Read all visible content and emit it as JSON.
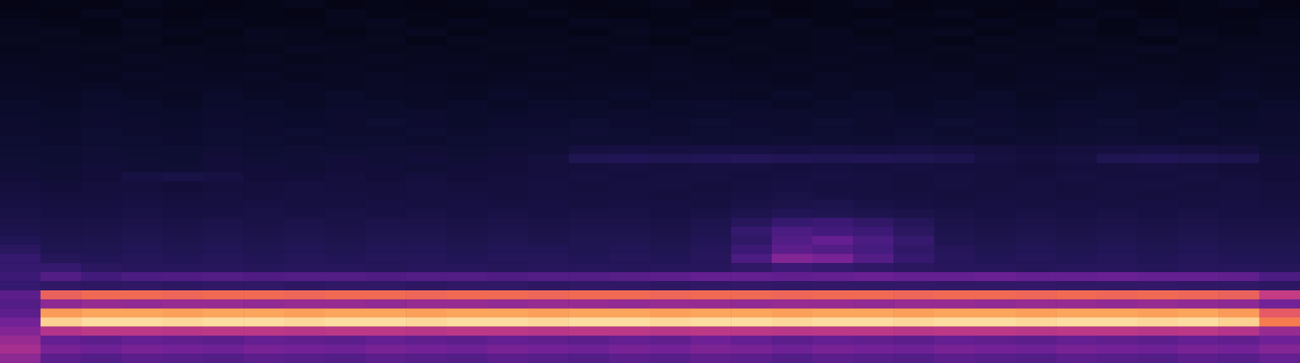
{
  "chart_data": {
    "type": "heatmap",
    "tick_labels": false,
    "grid": false,
    "zlim": [
      0,
      100
    ],
    "cells": [
      [
        5,
        6,
        5,
        7,
        6,
        5,
        6,
        7,
        5,
        6,
        5,
        6,
        7,
        6,
        5,
        6,
        7,
        5,
        6,
        5,
        6,
        7,
        5,
        6,
        6,
        5,
        7,
        6,
        5,
        6,
        7,
        5
      ],
      [
        6,
        5,
        7,
        6,
        5,
        6,
        6,
        5,
        7,
        6,
        6,
        5,
        6,
        7,
        6,
        5,
        6,
        6,
        7,
        5,
        6,
        5,
        6,
        7,
        5,
        6,
        6,
        7,
        5,
        6,
        5,
        6
      ],
      [
        7,
        6,
        6,
        8,
        6,
        7,
        6,
        6,
        7,
        8,
        6,
        7,
        6,
        6,
        8,
        7,
        6,
        7,
        6,
        8,
        6,
        7,
        6,
        6,
        7,
        6,
        8,
        6,
        7,
        6,
        6,
        7
      ],
      [
        7,
        8,
        6,
        7,
        7,
        6,
        8,
        7,
        6,
        7,
        8,
        6,
        7,
        7,
        6,
        8,
        7,
        6,
        7,
        7,
        8,
        6,
        7,
        8,
        6,
        7,
        7,
        6,
        8,
        7,
        6,
        7
      ],
      [
        8,
        7,
        7,
        8,
        6,
        7,
        8,
        7,
        7,
        8,
        6,
        8,
        7,
        7,
        8,
        7,
        6,
        8,
        7,
        7,
        8,
        7,
        7,
        6,
        8,
        7,
        8,
        7,
        6,
        8,
        7,
        7
      ],
      [
        7,
        8,
        8,
        7,
        8,
        7,
        7,
        9,
        8,
        7,
        8,
        7,
        8,
        8,
        7,
        9,
        8,
        7,
        8,
        7,
        8,
        9,
        7,
        8,
        7,
        8,
        7,
        8,
        9,
        7,
        8,
        8
      ],
      [
        8,
        8,
        7,
        9,
        8,
        8,
        9,
        7,
        8,
        9,
        8,
        8,
        7,
        9,
        8,
        8,
        9,
        8,
        7,
        8,
        9,
        8,
        8,
        7,
        9,
        8,
        8,
        9,
        7,
        8,
        8,
        9
      ],
      [
        9,
        8,
        9,
        8,
        9,
        8,
        8,
        9,
        9,
        8,
        9,
        9,
        8,
        8,
        9,
        8,
        9,
        9,
        8,
        9,
        8,
        9,
        9,
        8,
        8,
        9,
        9,
        8,
        9,
        8,
        9,
        8
      ],
      [
        9,
        9,
        8,
        10,
        9,
        9,
        10,
        8,
        9,
        10,
        9,
        8,
        9,
        10,
        9,
        9,
        10,
        9,
        9,
        8,
        10,
        9,
        9,
        10,
        8,
        9,
        10,
        9,
        9,
        8,
        10,
        9
      ],
      [
        10,
        9,
        10,
        9,
        10,
        10,
        9,
        10,
        9,
        10,
        10,
        9,
        10,
        9,
        10,
        10,
        9,
        10,
        10,
        9,
        10,
        9,
        10,
        10,
        9,
        10,
        9,
        10,
        10,
        9,
        10,
        9
      ],
      [
        10,
        10,
        11,
        10,
        9,
        11,
        10,
        10,
        11,
        10,
        10,
        9,
        11,
        10,
        10,
        11,
        10,
        10,
        9,
        11,
        10,
        11,
        10,
        10,
        11,
        9,
        10,
        11,
        10,
        10,
        11,
        10
      ],
      [
        11,
        10,
        11,
        11,
        10,
        11,
        11,
        10,
        11,
        11,
        10,
        11,
        10,
        11,
        11,
        10,
        11,
        12,
        11,
        10,
        11,
        11,
        10,
        11,
        11,
        10,
        11,
        11,
        10,
        11,
        10,
        11
      ],
      [
        11,
        11,
        12,
        11,
        11,
        12,
        11,
        11,
        12,
        11,
        12,
        11,
        11,
        12,
        11,
        12,
        11,
        11,
        12,
        12,
        11,
        12,
        11,
        11,
        12,
        11,
        12,
        11,
        12,
        11,
        11,
        12
      ],
      [
        12,
        11,
        12,
        12,
        11,
        12,
        12,
        11,
        12,
        13,
        12,
        11,
        12,
        12,
        13,
        12,
        12,
        13,
        12,
        12,
        13,
        12,
        12,
        13,
        12,
        11,
        12,
        13,
        12,
        12,
        11,
        12
      ],
      [
        12,
        12,
        13,
        12,
        12,
        13,
        12,
        13,
        12,
        12,
        13,
        12,
        13,
        13,
        14,
        13,
        12,
        13,
        13,
        12,
        13,
        12,
        13,
        12,
        13,
        12,
        13,
        13,
        12,
        13,
        12,
        12
      ],
      [
        13,
        12,
        13,
        13,
        12,
        13,
        13,
        12,
        13,
        13,
        12,
        13,
        13,
        14,
        13,
        13,
        14,
        13,
        13,
        14,
        13,
        13,
        14,
        13,
        12,
        13,
        13,
        14,
        13,
        12,
        13,
        13
      ],
      [
        13,
        13,
        14,
        13,
        13,
        14,
        13,
        14,
        13,
        14,
        14,
        13,
        14,
        14,
        17,
        18,
        17,
        18,
        18,
        17,
        18,
        17,
        18,
        17,
        16,
        15,
        16,
        17,
        18,
        17,
        16,
        13
      ],
      [
        14,
        13,
        14,
        14,
        13,
        15,
        14,
        14,
        15,
        14,
        15,
        14,
        15,
        16,
        22,
        23,
        22,
        23,
        24,
        23,
        22,
        23,
        22,
        21,
        17,
        16,
        17,
        22,
        23,
        22,
        21,
        15
      ],
      [
        14,
        14,
        15,
        14,
        14,
        15,
        15,
        14,
        15,
        15,
        14,
        15,
        15,
        16,
        16,
        17,
        16,
        17,
        17,
        16,
        17,
        16,
        17,
        16,
        16,
        15,
        16,
        16,
        17,
        16,
        15,
        15
      ],
      [
        15,
        14,
        15,
        18,
        19,
        18,
        15,
        15,
        16,
        15,
        16,
        15,
        16,
        16,
        17,
        16,
        17,
        17,
        16,
        17,
        18,
        17,
        16,
        17,
        16,
        16,
        17,
        16,
        16,
        17,
        16,
        15
      ],
      [
        16,
        15,
        16,
        16,
        15,
        16,
        16,
        17,
        16,
        16,
        17,
        16,
        16,
        17,
        16,
        17,
        17,
        16,
        17,
        18,
        17,
        17,
        16,
        17,
        16,
        17,
        16,
        17,
        17,
        16,
        17,
        16
      ],
      [
        17,
        16,
        16,
        17,
        16,
        17,
        16,
        17,
        17,
        16,
        17,
        17,
        16,
        17,
        17,
        17,
        16,
        17,
        18,
        19,
        18,
        17,
        17,
        16,
        17,
        17,
        16,
        17,
        16,
        17,
        17,
        16
      ],
      [
        18,
        17,
        17,
        18,
        17,
        17,
        18,
        17,
        17,
        18,
        17,
        18,
        17,
        18,
        17,
        18,
        18,
        17,
        19,
        20,
        21,
        19,
        18,
        17,
        18,
        17,
        18,
        17,
        18,
        17,
        18,
        17
      ],
      [
        19,
        18,
        18,
        19,
        18,
        18,
        19,
        18,
        19,
        18,
        19,
        18,
        19,
        18,
        19,
        19,
        18,
        19,
        21,
        23,
        22,
        21,
        20,
        19,
        18,
        19,
        18,
        19,
        18,
        19,
        18,
        18
      ],
      [
        20,
        19,
        19,
        20,
        19,
        20,
        19,
        20,
        19,
        20,
        20,
        19,
        20,
        19,
        20,
        20,
        19,
        21,
        25,
        30,
        32,
        28,
        24,
        20,
        19,
        20,
        19,
        20,
        19,
        20,
        19,
        19
      ],
      [
        21,
        20,
        20,
        21,
        20,
        21,
        20,
        21,
        20,
        21,
        21,
        20,
        21,
        20,
        21,
        21,
        20,
        22,
        30,
        36,
        34,
        32,
        26,
        21,
        20,
        21,
        20,
        21,
        20,
        21,
        20,
        20
      ],
      [
        23,
        21,
        21,
        22,
        21,
        22,
        21,
        22,
        21,
        22,
        22,
        21,
        22,
        21,
        22,
        22,
        21,
        23,
        28,
        38,
        42,
        36,
        30,
        22,
        21,
        22,
        21,
        22,
        21,
        22,
        21,
        21
      ],
      [
        26,
        22,
        22,
        23,
        22,
        23,
        22,
        23,
        22,
        23,
        23,
        22,
        23,
        23,
        22,
        23,
        22,
        24,
        32,
        40,
        38,
        35,
        28,
        24,
        22,
        23,
        22,
        23,
        22,
        23,
        22,
        22
      ],
      [
        30,
        24,
        23,
        24,
        23,
        24,
        23,
        24,
        23,
        24,
        24,
        23,
        24,
        24,
        23,
        24,
        23,
        25,
        36,
        48,
        46,
        38,
        30,
        25,
        23,
        24,
        23,
        24,
        23,
        24,
        23,
        23
      ],
      [
        30,
        30,
        26,
        25,
        25,
        25,
        24,
        25,
        25,
        24,
        25,
        25,
        24,
        25,
        25,
        24,
        25,
        25,
        28,
        32,
        30,
        28,
        26,
        25,
        25,
        24,
        25,
        25,
        24,
        25,
        25,
        24
      ],
      [
        32,
        38,
        34,
        36,
        37,
        38,
        37,
        38,
        38,
        37,
        38,
        38,
        37,
        38,
        38,
        39,
        40,
        42,
        42,
        41,
        42,
        43,
        42,
        42,
        43,
        42,
        42,
        43,
        42,
        42,
        41,
        36
      ],
      [
        30,
        28,
        27,
        28,
        27,
        28,
        28,
        27,
        28,
        28,
        27,
        28,
        28,
        27,
        28,
        28,
        27,
        28,
        29,
        28,
        29,
        28,
        29,
        28,
        28,
        29,
        28,
        28,
        29,
        28,
        28,
        27
      ],
      [
        40,
        74,
        76,
        76,
        75,
        76,
        76,
        75,
        76,
        76,
        75,
        76,
        76,
        75,
        76,
        76,
        75,
        76,
        76,
        75,
        76,
        76,
        75,
        76,
        76,
        75,
        76,
        75,
        76,
        75,
        74,
        62
      ],
      [
        38,
        50,
        52,
        51,
        52,
        52,
        51,
        52,
        52,
        51,
        52,
        52,
        51,
        52,
        52,
        51,
        52,
        52,
        51,
        52,
        52,
        51,
        52,
        52,
        51,
        52,
        52,
        51,
        52,
        51,
        50,
        45
      ],
      [
        40,
        86,
        88,
        88,
        87,
        88,
        88,
        87,
        88,
        88,
        87,
        88,
        88,
        87,
        88,
        88,
        87,
        88,
        88,
        87,
        88,
        88,
        87,
        88,
        88,
        87,
        88,
        88,
        87,
        88,
        86,
        72
      ],
      [
        45,
        96,
        98,
        98,
        97,
        98,
        98,
        97,
        98,
        98,
        97,
        98,
        98,
        97,
        98,
        98,
        97,
        98,
        98,
        97,
        98,
        98,
        97,
        98,
        98,
        97,
        98,
        98,
        97,
        98,
        96,
        80
      ],
      [
        48,
        58,
        60,
        60,
        59,
        60,
        60,
        59,
        60,
        60,
        59,
        60,
        60,
        59,
        60,
        60,
        59,
        60,
        60,
        59,
        60,
        60,
        59,
        60,
        60,
        59,
        60,
        60,
        59,
        60,
        58,
        52
      ],
      [
        52,
        42,
        40,
        42,
        41,
        40,
        42,
        41,
        40,
        42,
        41,
        40,
        42,
        41,
        40,
        42,
        41,
        44,
        42,
        40,
        42,
        41,
        40,
        42,
        41,
        40,
        42,
        41,
        40,
        42,
        41,
        44
      ],
      [
        55,
        46,
        44,
        46,
        45,
        44,
        46,
        45,
        44,
        46,
        45,
        44,
        46,
        45,
        44,
        46,
        45,
        47,
        46,
        44,
        46,
        45,
        44,
        46,
        45,
        44,
        46,
        45,
        44,
        46,
        45,
        48
      ],
      [
        50,
        40,
        38,
        40,
        39,
        38,
        40,
        39,
        38,
        40,
        39,
        38,
        40,
        39,
        38,
        40,
        39,
        41,
        40,
        38,
        40,
        39,
        38,
        40,
        39,
        38,
        40,
        39,
        38,
        40,
        39,
        42
      ]
    ]
  }
}
